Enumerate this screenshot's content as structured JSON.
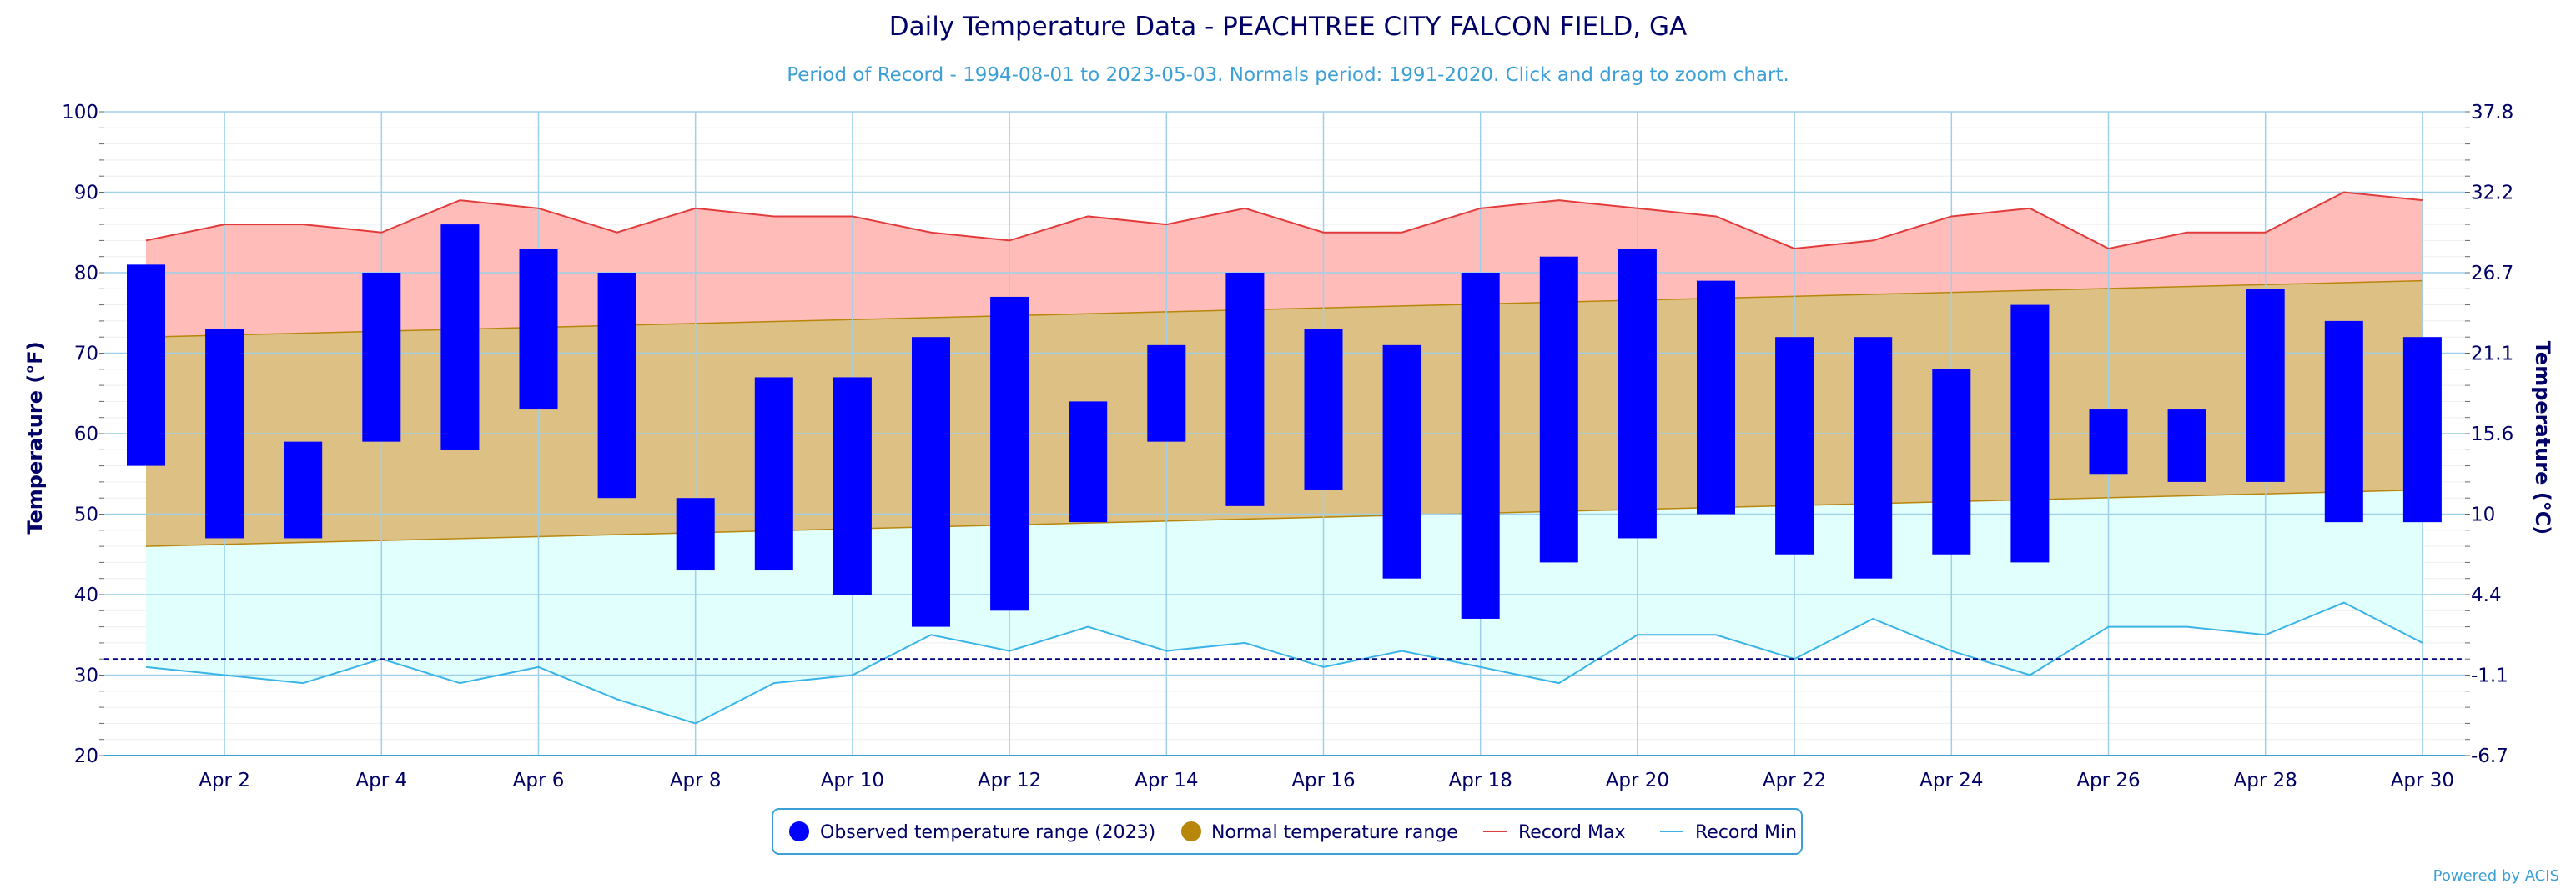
{
  "chart_data": {
    "type": "bar",
    "title": "Daily Temperature Data - PEACHTREE CITY FALCON FIELD, GA",
    "subtitle": "Period of Record - 1994-08-01 to 2023-05-03. Normals period: 1991-2020. Click and drag to zoom chart.",
    "ylabel": "Temperature (°F)",
    "ylabel_right": "Temperature (°C)",
    "ylim": [
      20,
      100
    ],
    "y_ticks": [
      20,
      30,
      40,
      50,
      60,
      70,
      80,
      90,
      100
    ],
    "y_right_ticks": [
      "-6.7",
      "-1.1",
      "4.4",
      "10",
      "15.6",
      "21.1",
      "26.7",
      "32.2",
      "37.8"
    ],
    "days": [
      1,
      2,
      3,
      4,
      5,
      6,
      7,
      8,
      9,
      10,
      11,
      12,
      13,
      14,
      15,
      16,
      17,
      18,
      19,
      20,
      21,
      22,
      23,
      24,
      25,
      26,
      27,
      28,
      29,
      30
    ],
    "x_tick_labels": [
      "Apr 2",
      "Apr 4",
      "Apr 6",
      "Apr 8",
      "Apr 10",
      "Apr 12",
      "Apr 14",
      "Apr 16",
      "Apr 18",
      "Apr 20",
      "Apr 22",
      "Apr 24",
      "Apr 26",
      "Apr 28",
      "Apr 30"
    ],
    "x_tick_days": [
      2,
      4,
      6,
      8,
      10,
      12,
      14,
      16,
      18,
      20,
      22,
      24,
      26,
      28,
      30
    ],
    "freezing_line": 32,
    "observed": {
      "name": "Observed temperature range (2023)",
      "color": "#0000ff",
      "high": [
        81,
        73,
        59,
        80,
        86,
        83,
        80,
        52,
        67,
        67,
        72,
        77,
        64,
        71,
        80,
        73,
        71,
        80,
        82,
        83,
        79,
        72,
        72,
        68,
        76,
        63,
        63,
        78,
        74,
        72
      ],
      "low": [
        56,
        47,
        47,
        59,
        58,
        63,
        52,
        43,
        43,
        40,
        36,
        38,
        49,
        59,
        51,
        53,
        42,
        37,
        44,
        47,
        50,
        45,
        42,
        45,
        44,
        55,
        54,
        54,
        49,
        49
      ]
    },
    "normal": {
      "name": "Normal temperature range",
      "color": "#b8860b",
      "high_start": 72,
      "high_end": 79,
      "low_start": 46,
      "low_end": 53
    },
    "record_max": {
      "name": "Record Max",
      "color": "#e23b3b",
      "values": [
        84,
        86,
        86,
        85,
        89,
        88,
        85,
        88,
        87,
        87,
        85,
        84,
        87,
        86,
        88,
        85,
        85,
        88,
        89,
        88,
        87,
        83,
        84,
        87,
        88,
        83,
        85,
        85,
        90,
        89
      ]
    },
    "record_min": {
      "name": "Record Min",
      "color": "#3ab4e6",
      "values": [
        31,
        30,
        29,
        32,
        29,
        31,
        27,
        24,
        29,
        30,
        35,
        33,
        36,
        33,
        34,
        31,
        33,
        31,
        29,
        35,
        35,
        32,
        37,
        33,
        30,
        36,
        36,
        35,
        39,
        34
      ]
    },
    "grid": true,
    "legend": "bottom-center"
  },
  "credit": "Powered by ACIS"
}
